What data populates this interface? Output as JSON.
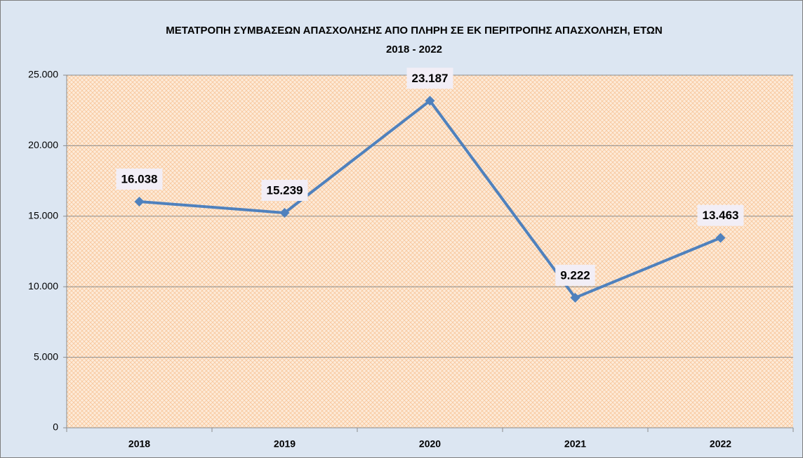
{
  "chart_data": {
    "type": "line",
    "title": [
      "ΜΕΤΑΤΡΟΠΗ ΣΥΜΒΑΣΕΩΝ ΑΠΑΣΧΟΛΗΣΗΣ ΑΠΟ ΠΛΗΡΗ  ΣΕ ΕΚ ΠΕΡΙΤΡΟΠΗΣ ΑΠΑΣΧΟΛΗΣΗ, ΕΤΩΝ",
      "2018 - 2022"
    ],
    "categories": [
      "2018",
      "2019",
      "2020",
      "2021",
      "2022"
    ],
    "values": [
      16038,
      15239,
      23187,
      9222,
      13463
    ],
    "value_labels": [
      "16.038",
      "15.239",
      "23.187",
      "9.222",
      "13.463"
    ],
    "color": "#4f81bd",
    "ylim": [
      0,
      25000
    ],
    "yticks": [
      0,
      {
        "value": 5000,
        "label": "5.000"
      },
      {
        "value": 10000,
        "label": "10.000"
      },
      {
        "value": 15000,
        "label": "15.000"
      },
      {
        "value": 20000,
        "label": "20.000"
      },
      {
        "value": 25000,
        "label": "25.000"
      }
    ],
    "grid": true
  }
}
